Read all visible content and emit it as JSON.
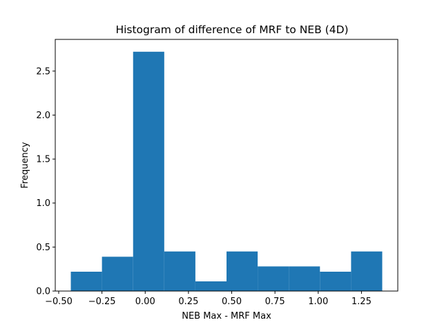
{
  "chart_data": {
    "type": "bar",
    "title": "Histogram of difference of MRF to NEB (4D)",
    "xlabel": "NEB Max - MRF Max",
    "ylabel": "Frequency",
    "xlim": [
      -0.52,
      1.46
    ],
    "ylim": [
      0,
      2.86
    ],
    "grid": false,
    "bar_color": "#1f77b4",
    "bin_edges": [
      -0.43,
      -0.25,
      -0.07,
      0.11,
      0.29,
      0.47,
      0.65,
      0.83,
      1.01,
      1.19,
      1.37
    ],
    "values": [
      0.22,
      0.39,
      2.72,
      0.45,
      0.11,
      0.45,
      0.28,
      0.28,
      0.22,
      0.45
    ],
    "x_ticks": [
      {
        "value": -0.5,
        "label": "−0.50"
      },
      {
        "value": -0.25,
        "label": "−0.25"
      },
      {
        "value": 0.0,
        "label": "0.00"
      },
      {
        "value": 0.25,
        "label": "0.25"
      },
      {
        "value": 0.5,
        "label": "0.50"
      },
      {
        "value": 0.75,
        "label": "0.75"
      },
      {
        "value": 1.0,
        "label": "1.00"
      },
      {
        "value": 1.25,
        "label": "1.25"
      }
    ],
    "y_ticks": [
      {
        "value": 0.0,
        "label": "0.0"
      },
      {
        "value": 0.5,
        "label": "0.5"
      },
      {
        "value": 1.0,
        "label": "1.0"
      },
      {
        "value": 1.5,
        "label": "1.5"
      },
      {
        "value": 2.0,
        "label": "2.0"
      },
      {
        "value": 2.5,
        "label": "2.5"
      }
    ]
  }
}
